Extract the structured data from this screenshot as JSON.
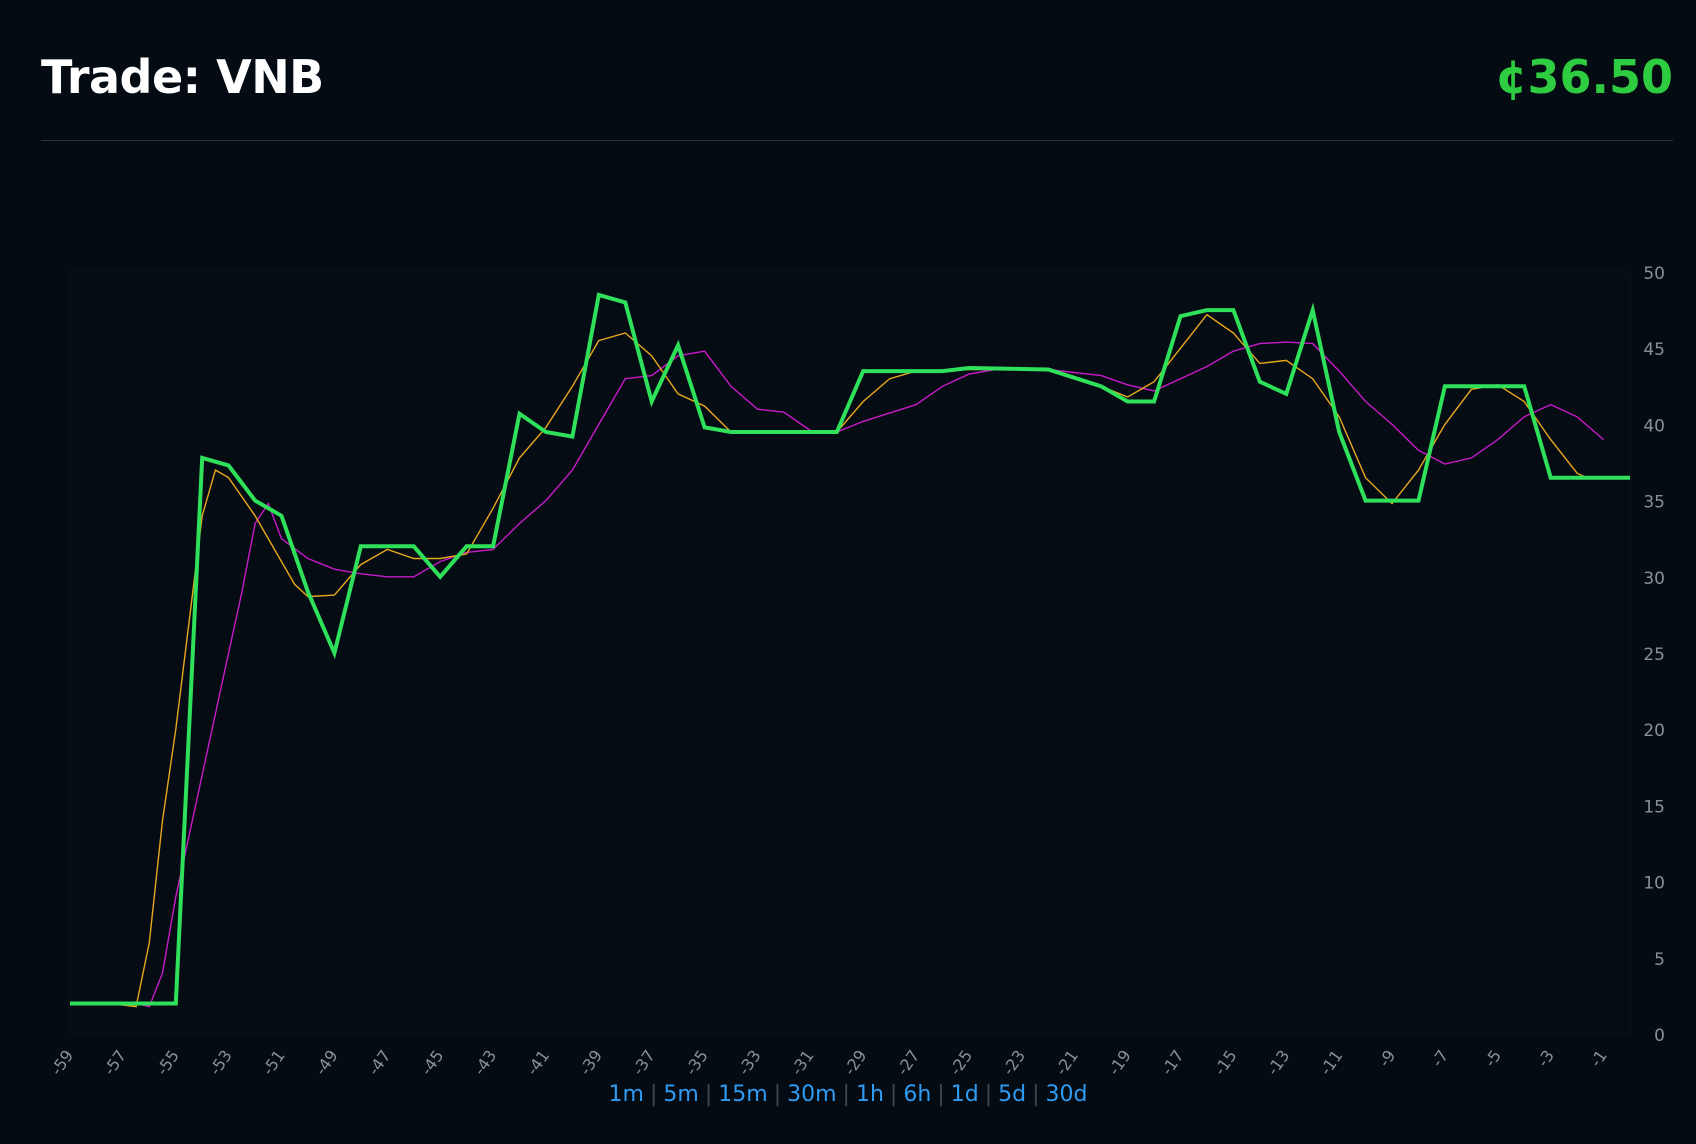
{
  "header": {
    "title": "Trade: VNB",
    "price": "¢36.50"
  },
  "colors": {
    "background": "#040b13",
    "price": "#2ecc40",
    "main_line": "#2ee05a",
    "fast_avg": "#e8a71d",
    "slow_avg": "#c81ac8",
    "axis_text": "#8a9096",
    "range_link": "#2f9bf2"
  },
  "ranges": [
    "1m",
    "5m",
    "15m",
    "30m",
    "1h",
    "6h",
    "1d",
    "5d",
    "30d"
  ],
  "chart_data": {
    "type": "line",
    "x_ticks": [
      -59,
      -57,
      -55,
      -53,
      -51,
      -49,
      -47,
      -45,
      -43,
      -41,
      -39,
      -37,
      -35,
      -33,
      -31,
      -29,
      -27,
      -25,
      -23,
      -21,
      -19,
      -17,
      -15,
      -13,
      -11,
      -9,
      -7,
      -5,
      -3,
      -1
    ],
    "y_ticks": [
      0,
      5,
      10,
      15,
      20,
      25,
      30,
      35,
      40,
      45,
      50
    ],
    "xlim": [
      -59,
      0
    ],
    "ylim": [
      0,
      50
    ],
    "y_axis_position": "right",
    "grid": false,
    "series": [
      {
        "role": "price",
        "points": [
          [
            -59,
            2
          ],
          [
            -55,
            2
          ],
          [
            -54,
            37.8
          ],
          [
            -53,
            37.3
          ],
          [
            -52,
            35
          ],
          [
            -51,
            34
          ],
          [
            -50,
            29
          ],
          [
            -49,
            25
          ],
          [
            -48,
            32
          ],
          [
            -46,
            32
          ],
          [
            -45,
            30
          ],
          [
            -44,
            32
          ],
          [
            -43,
            32
          ],
          [
            -42,
            40.7
          ],
          [
            -41,
            39.5
          ],
          [
            -40,
            39.2
          ],
          [
            -39,
            48.5
          ],
          [
            -38,
            48
          ],
          [
            -37,
            41.5
          ],
          [
            -36,
            45.2
          ],
          [
            -35,
            39.8
          ],
          [
            -34,
            39.5
          ],
          [
            -30,
            39.5
          ],
          [
            -29,
            43.5
          ],
          [
            -26,
            43.5
          ],
          [
            -25,
            43.7
          ],
          [
            -22,
            43.6
          ],
          [
            -20,
            42.5
          ],
          [
            -19,
            41.5
          ],
          [
            -18,
            41.5
          ],
          [
            -17,
            47.1
          ],
          [
            -16,
            47.5
          ],
          [
            -15,
            47.5
          ],
          [
            -14,
            42.8
          ],
          [
            -13,
            42
          ],
          [
            -12,
            47.5
          ],
          [
            -11,
            39.5
          ],
          [
            -10,
            35
          ],
          [
            -8,
            35
          ],
          [
            -7,
            42.5
          ],
          [
            -4,
            42.5
          ],
          [
            -3,
            36.5
          ],
          [
            0,
            36.5
          ]
        ]
      },
      {
        "role": "fast-average",
        "points": [
          [
            -59,
            2
          ],
          [
            -57.5,
            2
          ],
          [
            -56.5,
            1.8
          ],
          [
            -56,
            6
          ],
          [
            -55.5,
            14
          ],
          [
            -55,
            20
          ],
          [
            -54.5,
            27
          ],
          [
            -54,
            34
          ],
          [
            -53.5,
            37
          ],
          [
            -53,
            36.5
          ],
          [
            -52,
            34
          ],
          [
            -51,
            31
          ],
          [
            -50.5,
            29.5
          ],
          [
            -50,
            28.7
          ],
          [
            -49,
            28.8
          ],
          [
            -48,
            30.8
          ],
          [
            -47,
            31.8
          ],
          [
            -46,
            31.2
          ],
          [
            -45,
            31.2
          ],
          [
            -44,
            31.5
          ],
          [
            -43,
            34.5
          ],
          [
            -42,
            37.8
          ],
          [
            -41,
            39.8
          ],
          [
            -40,
            42.5
          ],
          [
            -39,
            45.5
          ],
          [
            -38,
            46
          ],
          [
            -37,
            44.5
          ],
          [
            -36,
            42
          ],
          [
            -35,
            41.2
          ],
          [
            -34,
            39.5
          ],
          [
            -30,
            39.5
          ],
          [
            -29,
            41.5
          ],
          [
            -28,
            43
          ],
          [
            -27,
            43.5
          ],
          [
            -26,
            43.5
          ],
          [
            -25,
            43.6
          ],
          [
            -22,
            43.6
          ],
          [
            -20,
            42.5
          ],
          [
            -19,
            41.8
          ],
          [
            -18,
            42.8
          ],
          [
            -17,
            45
          ],
          [
            -16,
            47.2
          ],
          [
            -15,
            46
          ],
          [
            -14,
            44
          ],
          [
            -13,
            44.2
          ],
          [
            -12,
            43
          ],
          [
            -11,
            40.5
          ],
          [
            -10,
            36.5
          ],
          [
            -9,
            34.8
          ],
          [
            -8,
            37
          ],
          [
            -7,
            40
          ],
          [
            -6,
            42.3
          ],
          [
            -5,
            42.6
          ],
          [
            -4,
            41.5
          ],
          [
            -3,
            39
          ],
          [
            -2,
            36.8
          ],
          [
            -1.5,
            36.4
          ]
        ]
      },
      {
        "role": "slow-average",
        "points": [
          [
            -59,
            2
          ],
          [
            -57,
            2
          ],
          [
            -56.5,
            2
          ],
          [
            -56,
            1.8
          ],
          [
            -55.5,
            4
          ],
          [
            -55,
            9
          ],
          [
            -54.5,
            13
          ],
          [
            -54,
            17
          ],
          [
            -53.5,
            21
          ],
          [
            -53,
            25
          ],
          [
            -52.5,
            29
          ],
          [
            -52,
            33.5
          ],
          [
            -51.5,
            34.8
          ],
          [
            -51,
            32.5
          ],
          [
            -50,
            31.2
          ],
          [
            -49,
            30.5
          ],
          [
            -48,
            30.2
          ],
          [
            -47,
            30
          ],
          [
            -46,
            30
          ],
          [
            -45,
            31
          ],
          [
            -44,
            31.6
          ],
          [
            -43,
            31.8
          ],
          [
            -42,
            33.5
          ],
          [
            -41,
            35
          ],
          [
            -40,
            37
          ],
          [
            -39,
            40
          ],
          [
            -38,
            43
          ],
          [
            -37,
            43.2
          ],
          [
            -36,
            44.5
          ],
          [
            -35,
            44.8
          ],
          [
            -34,
            42.5
          ],
          [
            -33,
            41
          ],
          [
            -32,
            40.8
          ],
          [
            -31,
            39.6
          ],
          [
            -30,
            39.5
          ],
          [
            -29,
            40.2
          ],
          [
            -27,
            41.3
          ],
          [
            -26,
            42.5
          ],
          [
            -25,
            43.3
          ],
          [
            -24,
            43.6
          ],
          [
            -22,
            43.6
          ],
          [
            -20,
            43.2
          ],
          [
            -19,
            42.6
          ],
          [
            -18,
            42.2
          ],
          [
            -17,
            43
          ],
          [
            -16,
            43.8
          ],
          [
            -15,
            44.8
          ],
          [
            -14,
            45.3
          ],
          [
            -13,
            45.4
          ],
          [
            -12,
            45.3
          ],
          [
            -11,
            43.5
          ],
          [
            -10,
            41.5
          ],
          [
            -9,
            40
          ],
          [
            -8,
            38.3
          ],
          [
            -7,
            37.4
          ],
          [
            -6,
            37.8
          ],
          [
            -5,
            39
          ],
          [
            -4,
            40.5
          ],
          [
            -3,
            41.3
          ],
          [
            -2,
            40.5
          ],
          [
            -1,
            39
          ]
        ]
      }
    ]
  }
}
